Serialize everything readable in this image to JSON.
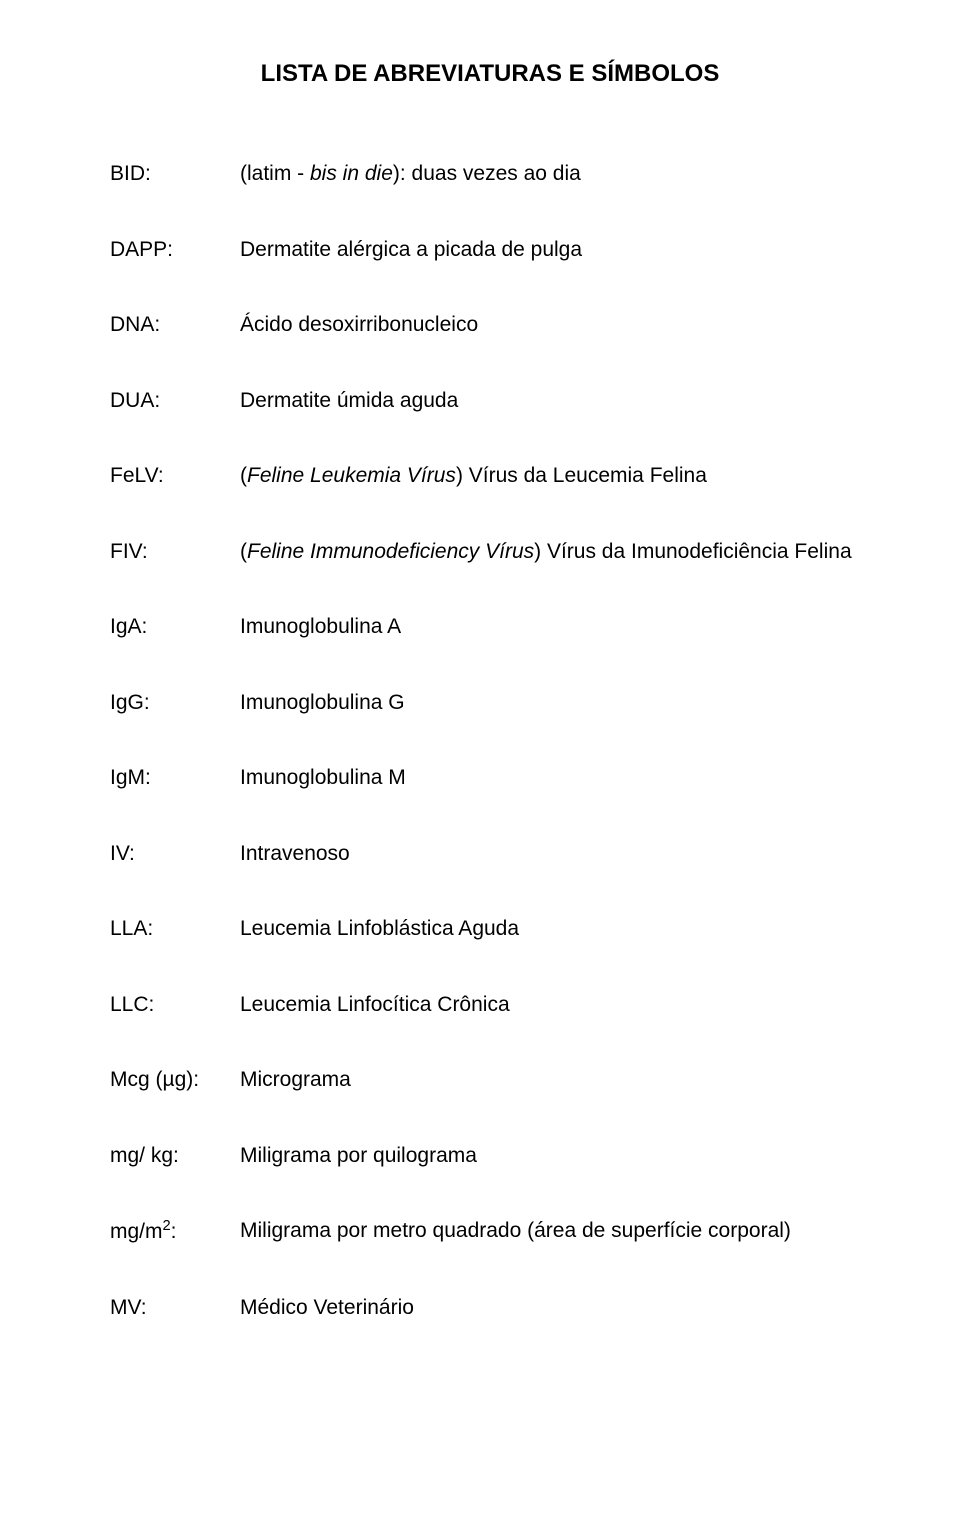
{
  "title": "LISTA DE ABREVIATURAS E SÍMBOLOS",
  "entries": [
    {
      "abbr": "BID:",
      "prefix": "(latim - ",
      "italic": "bis in die",
      "suffix": "): duas vezes ao dia"
    },
    {
      "abbr": "DAPP:",
      "text": "Dermatite alérgica a picada de pulga"
    },
    {
      "abbr": "DNA:",
      "text": "Ácido desoxirribonucleico"
    },
    {
      "abbr": "DUA:",
      "text": "Dermatite úmida aguda"
    },
    {
      "abbr": "FeLV:",
      "prefix": "(",
      "italic": "Feline Leukemia Vírus",
      "suffix": ") Vírus da Leucemia Felina"
    },
    {
      "abbr": "FIV:",
      "prefix": "(",
      "italic": "Feline Immunodeficiency Vírus",
      "suffix": ") Vírus da Imunodeficiência Felina"
    },
    {
      "abbr": "IgA:",
      "text": "Imunoglobulina A"
    },
    {
      "abbr": "IgG:",
      "text": "Imunoglobulina G"
    },
    {
      "abbr": "IgM:",
      "text": "Imunoglobulina M"
    },
    {
      "abbr": "IV:",
      "text": "Intravenoso"
    },
    {
      "abbr": "LLA:",
      "text": "Leucemia Linfoblástica Aguda"
    },
    {
      "abbr": "LLC:",
      "text": "Leucemia Linfocítica Crônica"
    },
    {
      "abbr": "Mcg (µg):",
      "text": "Micrograma"
    },
    {
      "abbr": "mg/ kg:",
      "text": "Miligrama por quilograma"
    },
    {
      "abbr_html": "mg/m<sup>2</sup>:",
      "text": "Miligrama por metro quadrado (área de superfície corporal)"
    },
    {
      "abbr": "MV:",
      "text": "Médico Veterinário"
    }
  ],
  "style": {
    "background_color": "#ffffff",
    "text_color": "#000000",
    "title_fontsize": 24,
    "body_fontsize": 21,
    "font_family": "Arial"
  }
}
